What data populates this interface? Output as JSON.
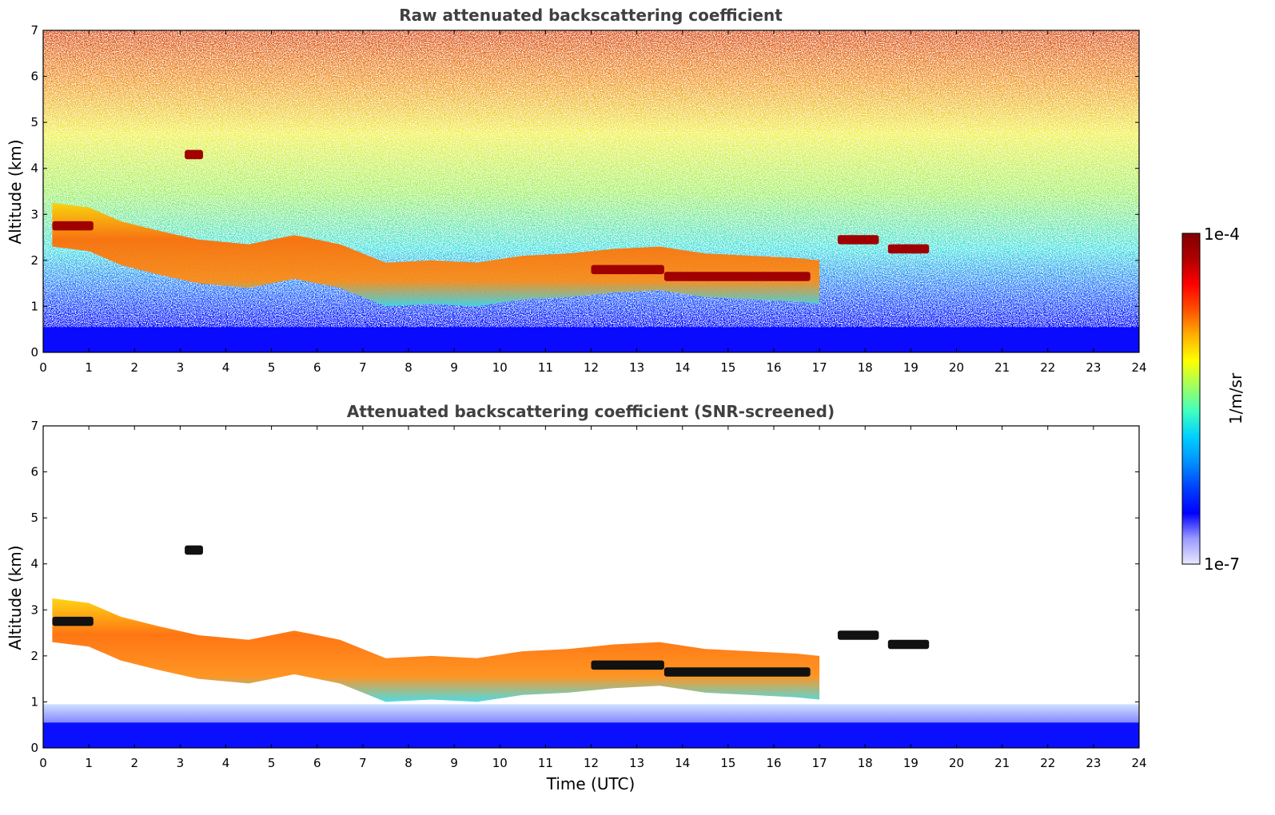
{
  "chart_data": [
    {
      "type": "heatmap",
      "title": "Raw attenuated backscattering coefficient",
      "xlabel": "",
      "ylabel": "Altitude (km)",
      "xlim": [
        0,
        24
      ],
      "ylim": [
        0,
        7
      ],
      "x_ticks": [
        "0",
        "1",
        "2",
        "3",
        "4",
        "5",
        "6",
        "7",
        "8",
        "9",
        "10",
        "11",
        "12",
        "13",
        "14",
        "15",
        "16",
        "17",
        "18",
        "19",
        "20",
        "21",
        "22",
        "23",
        "24"
      ],
      "y_ticks": [
        "0",
        "1",
        "2",
        "3",
        "4",
        "5",
        "6",
        "7"
      ],
      "screened": false,
      "features": {
        "cloud_layer": [
          [
            0.2,
            2.8
          ],
          [
            1.0,
            2.7
          ],
          [
            1.7,
            2.4
          ],
          [
            2.5,
            2.2
          ],
          [
            3.4,
            2.0
          ],
          [
            4.5,
            1.9
          ],
          [
            5.5,
            2.1
          ],
          [
            6.5,
            1.9
          ],
          [
            7.5,
            1.5
          ],
          [
            8.5,
            1.55
          ],
          [
            9.5,
            1.5
          ],
          [
            10.5,
            1.65
          ],
          [
            11.5,
            1.7
          ],
          [
            12.5,
            1.8
          ],
          [
            13.5,
            1.85
          ],
          [
            14.5,
            1.7
          ],
          [
            15.5,
            1.65
          ],
          [
            16.5,
            1.6
          ],
          [
            17.0,
            1.55
          ]
        ],
        "dense_layers": [
          [
            0.2,
            1.1,
            2.75
          ],
          [
            3.1,
            3.5,
            4.3
          ],
          [
            12.0,
            13.6,
            1.8
          ],
          [
            13.6,
            16.8,
            1.65
          ],
          [
            17.4,
            18.3,
            2.45
          ],
          [
            18.5,
            19.4,
            2.25
          ]
        ]
      }
    },
    {
      "type": "heatmap",
      "title": "Attenuated backscattering coefficient (SNR-screened)",
      "xlabel": "Time (UTC)",
      "ylabel": "Altitude (km)",
      "xlim": [
        0,
        24
      ],
      "ylim": [
        0,
        7
      ],
      "x_ticks": [
        "0",
        "1",
        "2",
        "3",
        "4",
        "5",
        "6",
        "7",
        "8",
        "9",
        "10",
        "11",
        "12",
        "13",
        "14",
        "15",
        "16",
        "17",
        "18",
        "19",
        "20",
        "21",
        "22",
        "23",
        "24"
      ],
      "y_ticks": [
        "0",
        "1",
        "2",
        "3",
        "4",
        "5",
        "6",
        "7"
      ],
      "screened": true
    }
  ],
  "colorbar": {
    "label": "1/m/sr",
    "max_label": "1e-4",
    "min_label": "1e-7",
    "colors": [
      "#e8e8ff",
      "#9a9aff",
      "#0000ff",
      "#0040ff",
      "#0090ff",
      "#00d0ff",
      "#40ffc0",
      "#a0ff60",
      "#ffff00",
      "#ffb000",
      "#ff5000",
      "#ff0000",
      "#b00000",
      "#800000"
    ]
  }
}
